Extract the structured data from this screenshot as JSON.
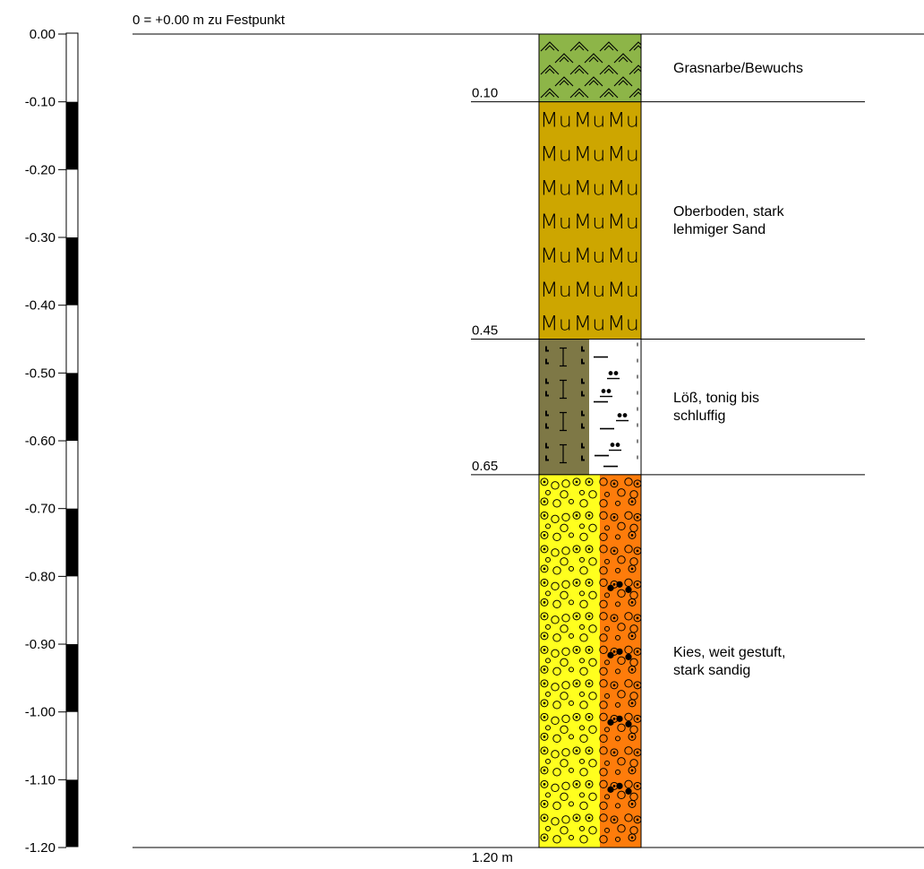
{
  "header_label": "0 = +0.00 m zu Festpunkt",
  "depth_scale": {
    "ticks": [
      "0.00",
      "-0.10",
      "-0.20",
      "-0.30",
      "-0.40",
      "-0.50",
      "-0.60",
      "-0.70",
      "-0.80",
      "-0.90",
      "-1.00",
      "-1.10",
      "-1.20"
    ]
  },
  "layers": [
    {
      "top_m": 0.0,
      "bottom_m": 0.1,
      "depth_label": "0.10",
      "description": [
        "Grasnarbe/Bewuchs"
      ],
      "pattern": "grass-turf",
      "colors": [
        "#8db548"
      ]
    },
    {
      "top_m": 0.1,
      "bottom_m": 0.45,
      "depth_label": "0.45",
      "description": [
        "Oberboden, stark",
        "lehmiger Sand"
      ],
      "pattern": "topsoil-mu",
      "pattern_text": "Mu",
      "colors": [
        "#cda600"
      ]
    },
    {
      "top_m": 0.45,
      "bottom_m": 0.65,
      "depth_label": "0.65",
      "description": [
        "Löß, tonig bis",
        "schluffig"
      ],
      "pattern": "loess-clay-silt",
      "colors": [
        "#7e7846",
        "#ffffff"
      ]
    },
    {
      "top_m": 0.65,
      "bottom_m": 1.2,
      "depth_label": "",
      "description": [
        "Kies, weit gestuft,",
        "stark sandig"
      ],
      "pattern": "gravel-sandy",
      "colors": [
        "#ffff1e",
        "#fe7c0b"
      ]
    }
  ],
  "final_depth_label": "1.20 m"
}
